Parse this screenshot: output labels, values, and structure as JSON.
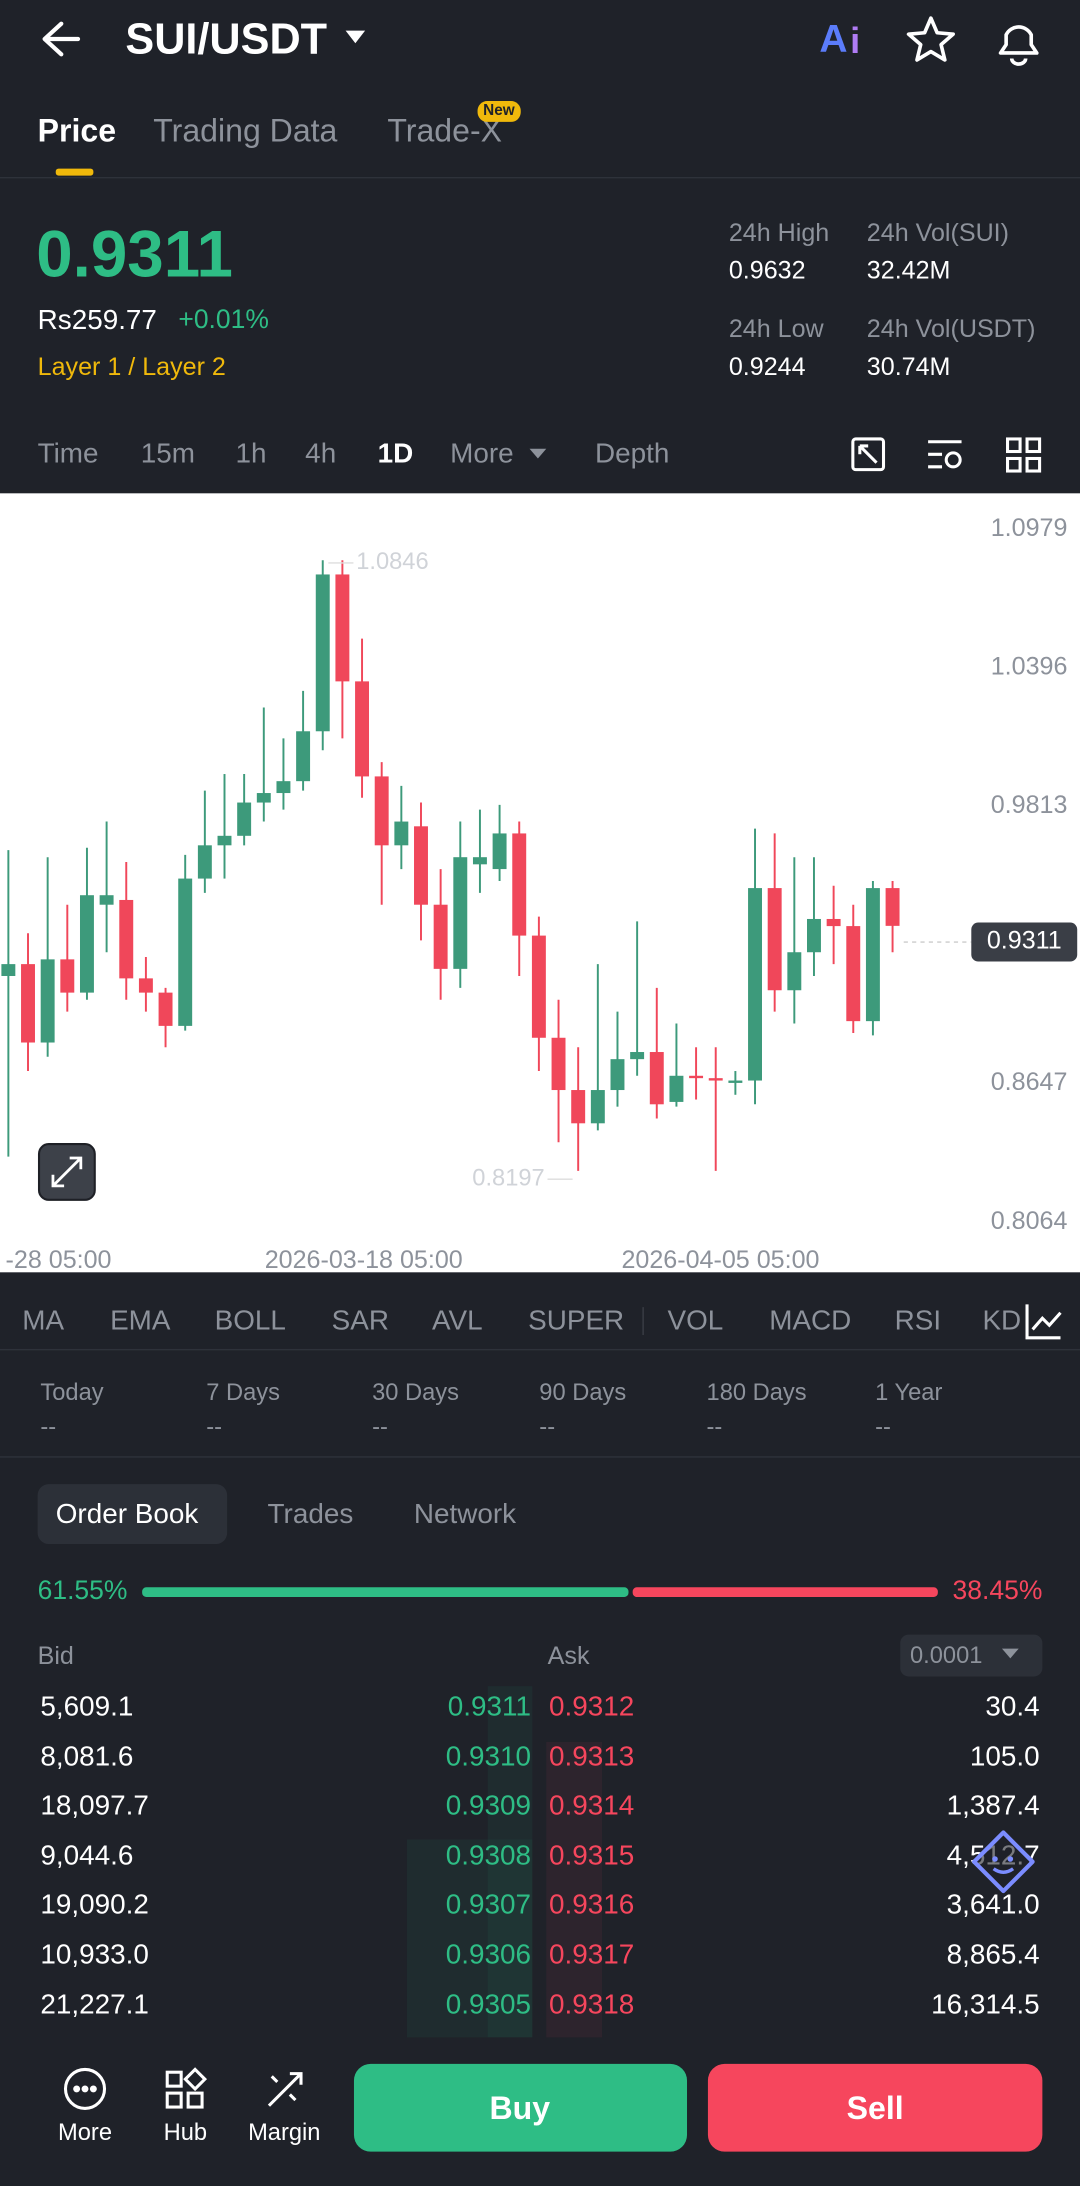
{
  "header": {
    "pair": "SUI/USDT"
  },
  "tabs": [
    "Price",
    "Trading Data",
    "Trade-X"
  ],
  "new_badge": "New",
  "price": {
    "last": "0.9311",
    "fiat": "Rs259.77",
    "change": "+0.01%",
    "tag": "Layer 1 / Layer 2"
  },
  "stats": [
    {
      "label": "24h High",
      "value": "0.9632"
    },
    {
      "label": "24h Vol(SUI)",
      "value": "32.42M"
    },
    {
      "label": "24h Low",
      "value": "0.9244"
    },
    {
      "label": "24h Vol(USDT)",
      "value": "30.74M"
    }
  ],
  "timeframes": [
    "Time",
    "15m",
    "1h",
    "4h",
    "1D",
    "More",
    "Depth"
  ],
  "chart_data": {
    "type": "candlestick",
    "open": [
      0.91,
      0.915,
      0.882,
      0.917,
      0.903,
      0.94,
      0.942,
      0.909,
      0.903,
      0.889,
      0.951,
      0.965,
      0.969,
      0.983,
      0.987,
      0.992,
      1.013,
      1.079,
      1.034,
      0.994,
      0.965,
      0.973,
      0.94,
      0.913,
      0.957,
      0.955,
      0.97,
      0.927,
      0.884,
      0.862,
      0.848,
      0.862,
      0.875,
      0.878,
      0.857,
      0.868,
      0.867,
      0.865,
      0.866,
      0.947,
      0.904,
      0.92,
      0.934,
      0.931,
      0.891,
      0.947
    ],
    "high": [
      0.963,
      0.928,
      0.96,
      0.94,
      0.964,
      0.975,
      0.958,
      0.918,
      0.905,
      0.961,
      0.988,
      0.995,
      0.995,
      1.023,
      1.01,
      1.03,
      1.085,
      1.085,
      1.052,
      1.0,
      0.99,
      0.983,
      0.955,
      0.975,
      0.98,
      0.982,
      0.975,
      0.935,
      0.9,
      0.88,
      0.915,
      0.895,
      0.933,
      0.905,
      0.89,
      0.88,
      0.88,
      0.87,
      0.972,
      0.97,
      0.96,
      0.96,
      0.948,
      0.94,
      0.95,
      0.95
    ],
    "low": [
      0.834,
      0.87,
      0.876,
      0.895,
      0.9,
      0.92,
      0.9,
      0.895,
      0.88,
      0.887,
      0.945,
      0.951,
      0.965,
      0.975,
      0.98,
      0.988,
      1.005,
      1.01,
      0.985,
      0.94,
      0.955,
      0.925,
      0.9,
      0.905,
      0.945,
      0.95,
      0.91,
      0.87,
      0.84,
      0.828,
      0.845,
      0.855,
      0.868,
      0.85,
      0.855,
      0.858,
      0.828,
      0.86,
      0.856,
      0.895,
      0.89,
      0.91,
      0.915,
      0.886,
      0.885,
      0.92
    ],
    "close": [
      0.915,
      0.882,
      0.917,
      0.903,
      0.944,
      0.944,
      0.909,
      0.903,
      0.889,
      0.951,
      0.965,
      0.969,
      0.983,
      0.987,
      0.992,
      1.013,
      1.079,
      1.034,
      0.994,
      0.965,
      0.975,
      0.94,
      0.913,
      0.96,
      0.96,
      0.97,
      0.927,
      0.884,
      0.862,
      0.848,
      0.862,
      0.875,
      0.878,
      0.856,
      0.868,
      0.867,
      0.866,
      0.866,
      0.947,
      0.904,
      0.92,
      0.934,
      0.931,
      0.891,
      0.947,
      0.9311
    ],
    "ylim": [
      0.8064,
      1.0979
    ],
    "yticks": [
      1.0979,
      1.0396,
      0.9813,
      0.8647,
      0.8064
    ],
    "x_labels": [
      "-28 05:00",
      "2026-03-18 05:00",
      "2026-04-05 05:00"
    ],
    "annotations": [
      "1.0846",
      "0.8197"
    ],
    "last_price": "0.9311",
    "up_color": "#3d9a7b",
    "down_color": "#f0475a"
  },
  "indicators": [
    "MA",
    "EMA",
    "BOLL",
    "SAR",
    "AVL",
    "SUPER",
    "VOL",
    "MACD",
    "RSI",
    "KD"
  ],
  "performance": [
    {
      "label": "Today",
      "value": "--"
    },
    {
      "label": "7 Days",
      "value": "--"
    },
    {
      "label": "30 Days",
      "value": "--"
    },
    {
      "label": "90 Days",
      "value": "--"
    },
    {
      "label": "180 Days",
      "value": "--"
    },
    {
      "label": "1 Year",
      "value": "--"
    }
  ],
  "book_tabs": [
    "Order Book",
    "Trades",
    "Network"
  ],
  "ratio": {
    "values": [
      61.55,
      38.45
    ],
    "value_labels": [
      "61.55%",
      "38.45%"
    ]
  },
  "book_head": {
    "bid": "Bid",
    "ask": "Ask",
    "precision": "0.0001"
  },
  "book": [
    [
      "5,609.1",
      "0.9311",
      "0.9312",
      "30.4"
    ],
    [
      "8,081.6",
      "0.9310",
      "0.9313",
      "105.0"
    ],
    [
      "18,097.7",
      "0.9309",
      "0.9314",
      "1,387.4"
    ],
    [
      "9,044.6",
      "0.9308",
      "0.9315",
      "4,512.7"
    ],
    [
      "19,090.2",
      "0.9307",
      "0.9316",
      "3,641.0"
    ],
    [
      "10,933.0",
      "0.9306",
      "0.9317",
      "8,865.4"
    ],
    [
      "21,227.1",
      "0.9305",
      "0.9318",
      "16,314.5"
    ]
  ],
  "nav": [
    "More",
    "Hub",
    "Margin"
  ],
  "buy": "Buy",
  "sell": "Sell"
}
